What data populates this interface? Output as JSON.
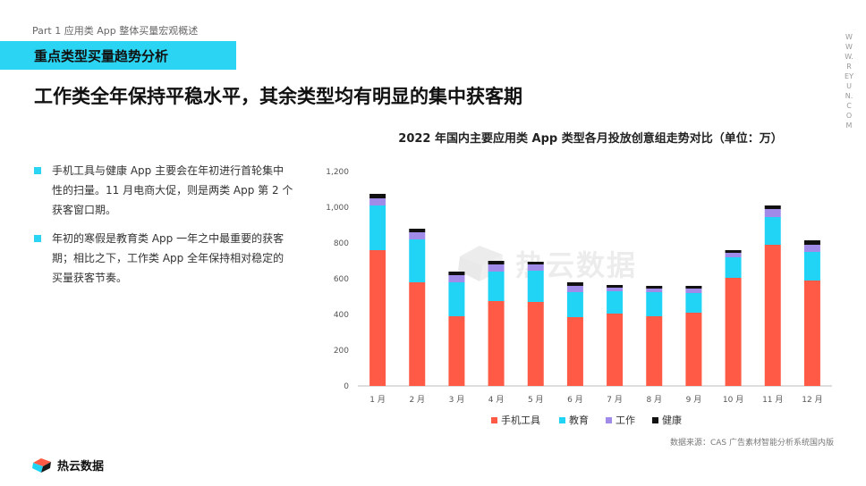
{
  "header": {
    "part_label": "Part 1 应用类 App 整体买量宏观概述",
    "section_title": "重点类型买量趋势分析",
    "headline": "工作类全年保持平稳水平，其余类型均有明显的集中获客期",
    "side_url": "WWW.REYUN.COM"
  },
  "bullets": [
    {
      "text": "手机工具与健康 App 主要会在年初进行首轮集中性的扫量。11 月电商大促，则是两类 App 第 2 个获客窗口期。"
    },
    {
      "text": "年初的寒假是教育类 App 一年之中最重要的获客期；相比之下，工作类 App 全年保持相对稳定的买量获客节奏。"
    }
  ],
  "chart_data": {
    "type": "bar",
    "stacked": true,
    "title": "2022 年国内主要应用类 App 类型各月投放创意组走势对比（单位：万）",
    "categories": [
      "1 月",
      "2 月",
      "3 月",
      "4 月",
      "5 月",
      "6 月",
      "7 月",
      "8 月",
      "9 月",
      "10 月",
      "11 月",
      "12 月"
    ],
    "series": [
      {
        "name": "手机工具",
        "color": "#ff5a45",
        "values": [
          760,
          580,
          390,
          475,
          470,
          385,
          405,
          390,
          410,
          605,
          790,
          590
        ]
      },
      {
        "name": "教育",
        "color": "#21d4f5",
        "values": [
          250,
          240,
          190,
          165,
          175,
          140,
          125,
          135,
          110,
          115,
          155,
          160
        ]
      },
      {
        "name": "工作",
        "color": "#a08be8",
        "values": [
          40,
          40,
          40,
          40,
          35,
          35,
          20,
          20,
          25,
          25,
          45,
          40
        ]
      },
      {
        "name": "健康",
        "color": "#111111",
        "values": [
          25,
          20,
          20,
          20,
          15,
          20,
          15,
          15,
          15,
          15,
          20,
          25
        ]
      }
    ],
    "ylim": [
      0,
      1200
    ],
    "yticks": [
      "0",
      "200",
      "400",
      "600",
      "800",
      "1,000",
      "1,200"
    ],
    "legend_position": "bottom"
  },
  "watermark": {
    "text": "热云数据"
  },
  "footer": {
    "source": "数据来源：CAS 广告素材智能分析系统国内版",
    "logo_text": "热云数据"
  }
}
